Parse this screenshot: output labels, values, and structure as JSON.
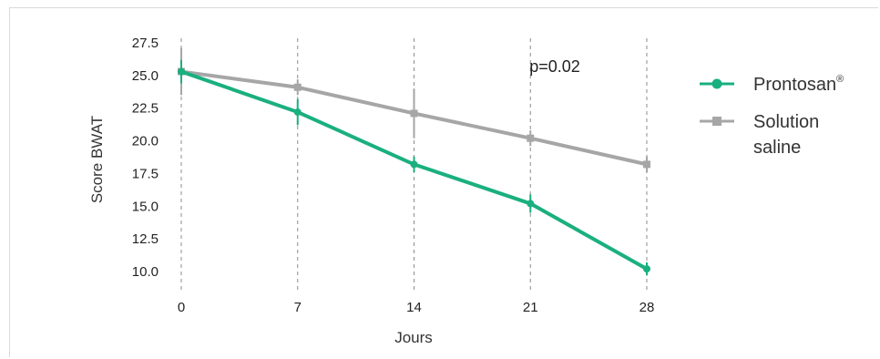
{
  "chart_data": {
    "type": "line",
    "x": [
      0,
      7,
      14,
      21,
      28
    ],
    "xlabel": "Jours",
    "ylabel": "Score BWAT",
    "ylim": [
      10.0,
      27.5
    ],
    "yticks": [
      "27.5",
      "25.0",
      "22.5",
      "20.0",
      "17.5",
      "15.0",
      "12.5",
      "10.0"
    ],
    "xticks": [
      "0",
      "7",
      "14",
      "21",
      "28"
    ],
    "grid": "vertical dashed",
    "legend_position": "right",
    "annotation": "p=0.02",
    "series": [
      {
        "name": "Prontosan",
        "name_suffix": "®",
        "color": "#1aaf7f",
        "marker": "circle",
        "values": [
          25.3,
          22.2,
          18.2,
          15.2,
          10.2
        ],
        "error": [
          0.9,
          1.0,
          0.6,
          0.7,
          0.5
        ]
      },
      {
        "name": "Solution saline",
        "name_line1": "Solution",
        "name_line2": "saline",
        "color": "#a6a6a6",
        "marker": "square",
        "values": [
          25.3,
          24.1,
          22.1,
          20.2,
          18.2
        ],
        "error": [
          1.8,
          0.6,
          1.9,
          0.6,
          0.6
        ]
      }
    ]
  }
}
